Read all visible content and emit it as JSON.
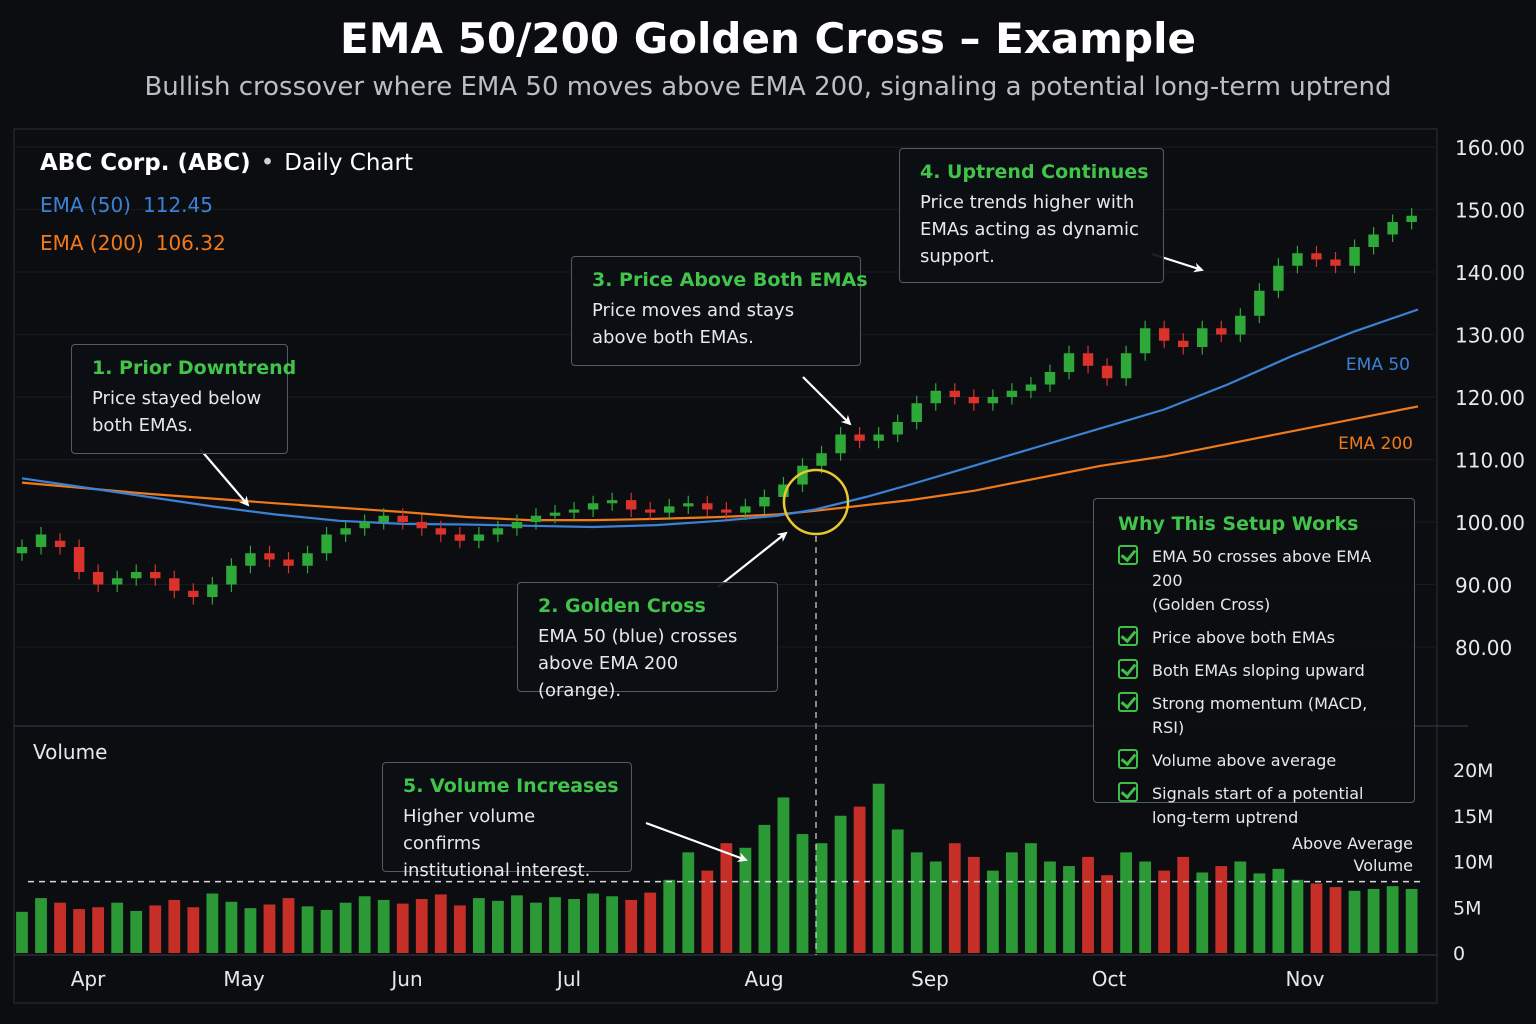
{
  "title": "EMA 50/200 Golden Cross – Example",
  "subtitle": "Bullish crossover where EMA 50 moves above EMA 200, signaling a potential long-term uptrend",
  "stock": {
    "name": "ABC Corp. (ABC)",
    "separator": "•",
    "timeframe": "Daily Chart"
  },
  "ema_readout": [
    {
      "label": "EMA (50)",
      "value": "112.45",
      "color": "#3b82d6"
    },
    {
      "label": "EMA (200)",
      "value": "106.32",
      "color": "#f07a1a"
    }
  ],
  "callouts": [
    {
      "id": "prior-downtrend",
      "title": "1. Prior Downtrend",
      "text": [
        "Price stayed below",
        "both EMAs."
      ]
    },
    {
      "id": "golden-cross",
      "title": "2. Golden Cross",
      "text": [
        "EMA 50 (blue) crosses",
        "above EMA 200 (orange)."
      ]
    },
    {
      "id": "price-above",
      "title": "3. Price Above Both EMAs",
      "text": [
        "Price moves and stays",
        "above both EMAs."
      ]
    },
    {
      "id": "uptrend-continues",
      "title": "4. Uptrend Continues",
      "text": [
        "Price trends higher with",
        "EMAs acting as dynamic",
        "support."
      ]
    },
    {
      "id": "volume-increases",
      "title": "5. Volume Increases",
      "text": [
        "Higher volume confirms",
        "institutional interest."
      ]
    }
  ],
  "why_box": {
    "title": "Why This Setup Works",
    "items": [
      [
        "EMA 50 crosses above EMA 200",
        "(Golden Cross)"
      ],
      [
        "Price above both EMAs"
      ],
      [
        "Both EMAs sloping upward"
      ],
      [
        "Strong momentum (MACD, RSI)"
      ],
      [
        "Volume above average"
      ],
      [
        "Signals start of a potential",
        "long-term uptrend"
      ]
    ]
  },
  "colors": {
    "bull": "#2fa83a",
    "bear": "#d9332b",
    "ema50": "#3b82d6",
    "ema200": "#f07a1a",
    "accent_green": "#42c44b",
    "cross_circle": "#e8c930",
    "grid": "#23272e",
    "background": "#0b0d11"
  },
  "chart_data": {
    "type": "candlestick",
    "price_axis": {
      "ticks": [
        "80.00",
        "90.00",
        "100.00",
        "110.00",
        "120.00",
        "130.00",
        "140.00",
        "150.00",
        "160.00"
      ],
      "range": [
        78,
        162
      ]
    },
    "volume_axis": {
      "label": "Volume",
      "ticks": [
        "0",
        "5M",
        "10M",
        "15M",
        "20M"
      ],
      "range": [
        0,
        22
      ]
    },
    "x_axis": {
      "months": [
        "Apr",
        "May",
        "Jun",
        "Jul",
        "Aug",
        "Sep",
        "Oct",
        "Nov"
      ]
    },
    "series": [
      {
        "name": "EMA 50",
        "line_label": "EMA 50",
        "color": "#3b82d6"
      },
      {
        "name": "EMA 200",
        "line_label": "EMA 200",
        "color": "#f07a1a"
      }
    ],
    "ema50": [
      [
        0,
        107
      ],
      [
        10,
        105.5
      ],
      [
        20,
        104
      ],
      [
        30,
        102.5
      ],
      [
        40,
        101.2
      ],
      [
        50,
        100.2
      ],
      [
        60,
        99.7
      ],
      [
        70,
        99.6
      ],
      [
        80,
        99.4
      ],
      [
        90,
        99.2
      ],
      [
        100,
        99.5
      ],
      [
        110,
        100.2
      ],
      [
        119,
        101
      ],
      [
        125,
        102
      ],
      [
        133,
        104
      ],
      [
        140,
        106
      ],
      [
        150,
        109
      ],
      [
        160,
        112
      ],
      [
        170,
        115
      ],
      [
        180,
        118
      ],
      [
        190,
        122
      ],
      [
        200,
        126.5
      ],
      [
        210,
        130.5
      ],
      [
        220,
        134
      ]
    ],
    "ema200": [
      [
        0,
        106.3
      ],
      [
        20,
        104.5
      ],
      [
        40,
        103
      ],
      [
        60,
        101.6
      ],
      [
        70,
        100.8
      ],
      [
        80,
        100.3
      ],
      [
        90,
        100.3
      ],
      [
        100,
        100.5
      ],
      [
        110,
        100.8
      ],
      [
        119,
        101.2
      ],
      [
        125,
        101.8
      ],
      [
        140,
        103.5
      ],
      [
        150,
        105
      ],
      [
        160,
        107
      ],
      [
        170,
        109
      ],
      [
        180,
        110.5
      ],
      [
        190,
        112.5
      ],
      [
        200,
        114.5
      ],
      [
        210,
        116.5
      ],
      [
        220,
        118.5
      ]
    ],
    "candles": [
      [
        0,
        95,
        96
      ],
      [
        3,
        96,
        98
      ],
      [
        6,
        97,
        96
      ],
      [
        9,
        96,
        92
      ],
      [
        12,
        92,
        90
      ],
      [
        15,
        90,
        91
      ],
      [
        18,
        91,
        92
      ],
      [
        21,
        92,
        91
      ],
      [
        24,
        91,
        89
      ],
      [
        27,
        89,
        88
      ],
      [
        30,
        88,
        90
      ],
      [
        33,
        90,
        93
      ],
      [
        36,
        93,
        95
      ],
      [
        39,
        95,
        94
      ],
      [
        42,
        94,
        93
      ],
      [
        45,
        93,
        95
      ],
      [
        48,
        95,
        98
      ],
      [
        51,
        98,
        99
      ],
      [
        54,
        99,
        100
      ],
      [
        57,
        100,
        101
      ],
      [
        60,
        101,
        100
      ],
      [
        63,
        100,
        99
      ],
      [
        66,
        99,
        98
      ],
      [
        69,
        98,
        97
      ],
      [
        72,
        97,
        98
      ],
      [
        75,
        98,
        99
      ],
      [
        78,
        99,
        100
      ],
      [
        81,
        100,
        101
      ],
      [
        84,
        101,
        101.5
      ],
      [
        87,
        101.5,
        102
      ],
      [
        90,
        102,
        103
      ],
      [
        93,
        103,
        103.5
      ],
      [
        96,
        103.5,
        102
      ],
      [
        99,
        102,
        101.5
      ],
      [
        102,
        101.5,
        102.5
      ],
      [
        105,
        102.5,
        103
      ],
      [
        108,
        103,
        102
      ],
      [
        111,
        102,
        101.5
      ],
      [
        114,
        101.5,
        102.5
      ],
      [
        117,
        102.5,
        104
      ],
      [
        120,
        104,
        106
      ],
      [
        123,
        106,
        109
      ],
      [
        126,
        109,
        111
      ],
      [
        129,
        111,
        114
      ],
      [
        132,
        114,
        113
      ],
      [
        135,
        113,
        114
      ],
      [
        138,
        114,
        116
      ],
      [
        141,
        116,
        119
      ],
      [
        144,
        119,
        121
      ],
      [
        147,
        121,
        120
      ],
      [
        150,
        120,
        119
      ],
      [
        153,
        119,
        120
      ],
      [
        156,
        120,
        121
      ],
      [
        159,
        121,
        122
      ],
      [
        162,
        122,
        124
      ],
      [
        165,
        124,
        127
      ],
      [
        168,
        127,
        125
      ],
      [
        171,
        125,
        123
      ],
      [
        174,
        123,
        127
      ],
      [
        177,
        127,
        131
      ],
      [
        180,
        131,
        129
      ],
      [
        183,
        129,
        128
      ],
      [
        186,
        128,
        131
      ],
      [
        189,
        131,
        130
      ],
      [
        192,
        130,
        133
      ],
      [
        195,
        133,
        137
      ],
      [
        198,
        137,
        141
      ],
      [
        201,
        141,
        143
      ],
      [
        204,
        143,
        142
      ],
      [
        207,
        142,
        141
      ],
      [
        210,
        141,
        144
      ],
      [
        213,
        144,
        146
      ],
      [
        216,
        146,
        148
      ],
      [
        219,
        148,
        149
      ]
    ],
    "volume": [
      [
        0,
        4.5
      ],
      [
        3,
        6
      ],
      [
        6,
        5.5
      ],
      [
        9,
        4.8
      ],
      [
        12,
        5
      ],
      [
        15,
        5.5
      ],
      [
        18,
        4.6
      ],
      [
        21,
        5.2
      ],
      [
        24,
        5.8
      ],
      [
        27,
        5
      ],
      [
        30,
        6.5
      ],
      [
        33,
        5.6
      ],
      [
        36,
        4.9
      ],
      [
        39,
        5.3
      ],
      [
        42,
        6
      ],
      [
        45,
        5.1
      ],
      [
        48,
        4.7
      ],
      [
        51,
        5.5
      ],
      [
        54,
        6.2
      ],
      [
        57,
        5.8
      ],
      [
        60,
        5.4
      ],
      [
        63,
        5.9
      ],
      [
        66,
        6.4
      ],
      [
        69,
        5.2
      ],
      [
        72,
        6
      ],
      [
        75,
        5.7
      ],
      [
        78,
        6.3
      ],
      [
        81,
        5.5
      ],
      [
        84,
        6.1
      ],
      [
        87,
        5.9
      ],
      [
        90,
        6.5
      ],
      [
        93,
        6.2
      ],
      [
        96,
        5.8
      ],
      [
        99,
        6.6
      ],
      [
        102,
        8
      ],
      [
        105,
        11
      ],
      [
        108,
        9
      ],
      [
        111,
        12
      ],
      [
        114,
        11.5
      ],
      [
        117,
        14
      ],
      [
        120,
        17
      ],
      [
        123,
        13
      ],
      [
        126,
        12
      ],
      [
        129,
        15
      ],
      [
        132,
        16
      ],
      [
        135,
        18.5
      ],
      [
        138,
        13.5
      ],
      [
        141,
        11
      ],
      [
        144,
        10
      ],
      [
        147,
        12
      ],
      [
        150,
        10.5
      ],
      [
        153,
        9
      ],
      [
        156,
        11
      ],
      [
        159,
        12
      ],
      [
        162,
        10
      ],
      [
        165,
        9.5
      ],
      [
        168,
        10.5
      ],
      [
        171,
        8.5
      ],
      [
        174,
        11
      ],
      [
        177,
        10
      ],
      [
        180,
        9
      ],
      [
        183,
        10.5
      ],
      [
        186,
        8.8
      ],
      [
        189,
        9.5
      ],
      [
        192,
        10
      ],
      [
        195,
        8.7
      ],
      [
        198,
        9.2
      ],
      [
        201,
        8
      ],
      [
        204,
        7.6
      ],
      [
        207,
        7.2
      ],
      [
        210,
        6.8
      ],
      [
        213,
        7
      ],
      [
        216,
        7.3
      ],
      [
        219,
        7
      ]
    ],
    "average_volume": 7.8,
    "average_volume_label": [
      "Above Average",
      "Volume"
    ]
  }
}
